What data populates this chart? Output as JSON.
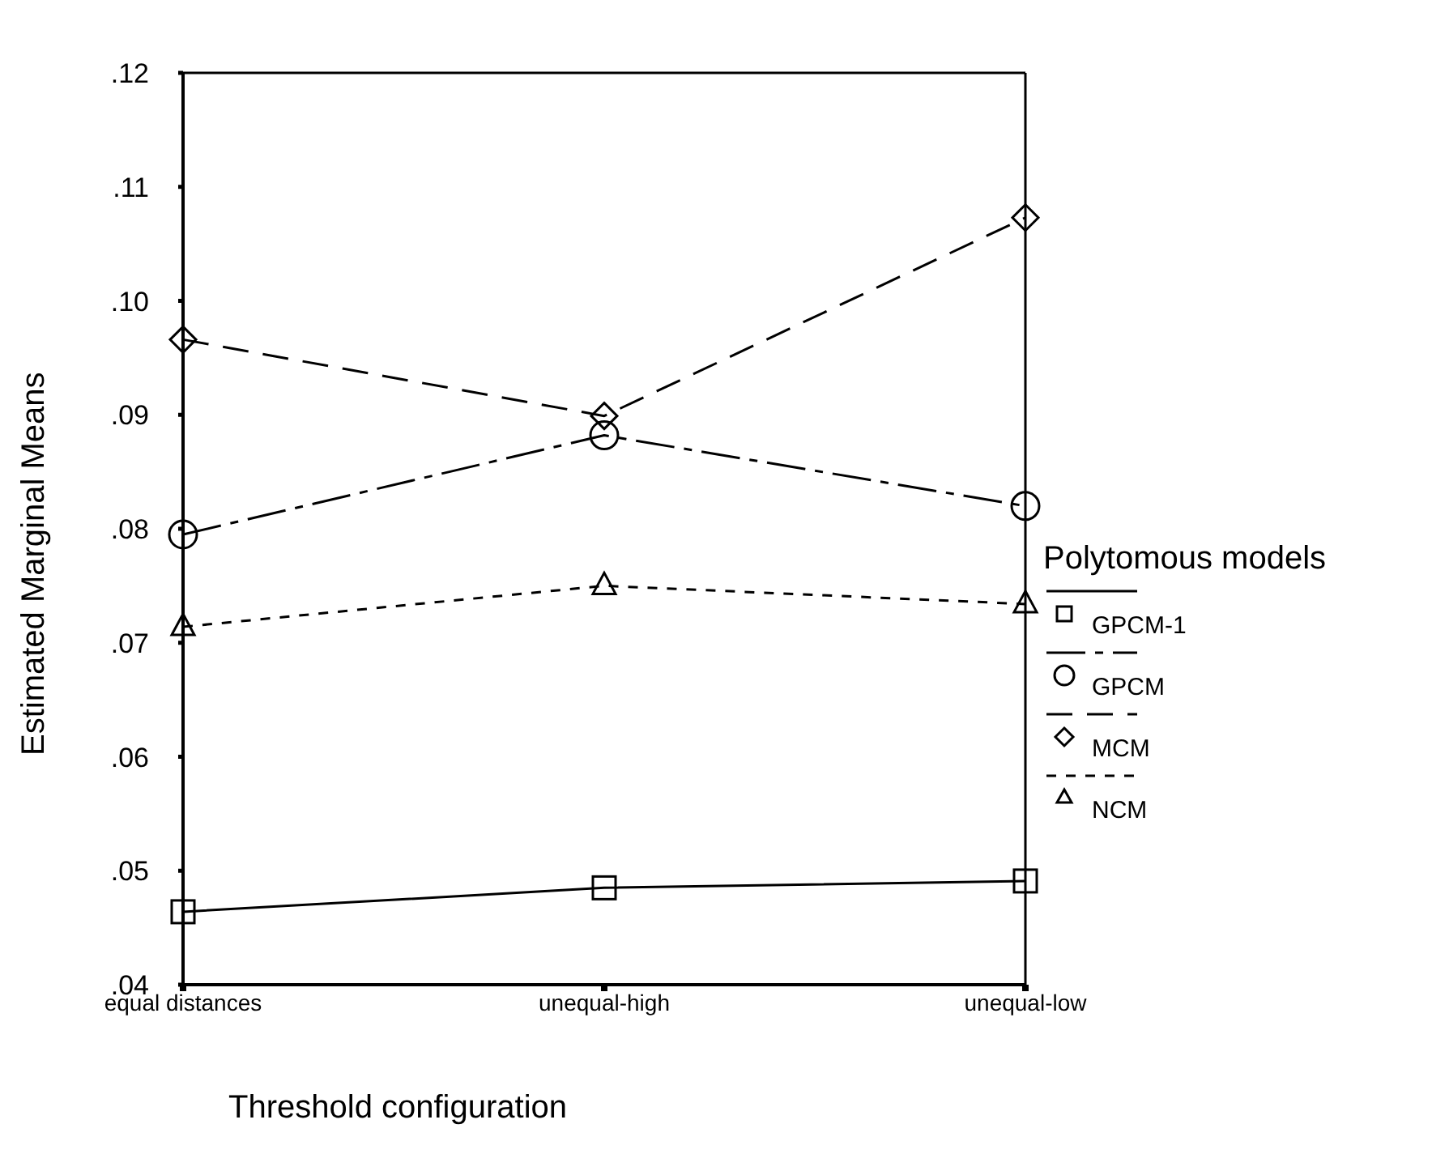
{
  "chart_data": {
    "type": "line",
    "xlabel": "Threshold configuration",
    "ylabel": "Estimated Marginal Means",
    "legend_title": "Polytomous models",
    "legend": "right",
    "categories": [
      "equal distances",
      "unequal-high",
      "unequal-low"
    ],
    "ylim": [
      0.04,
      0.12
    ],
    "yticks": [
      {
        "value": 0.04,
        "label": ".04"
      },
      {
        "value": 0.05,
        "label": ".05"
      },
      {
        "value": 0.06,
        "label": ".06"
      },
      {
        "value": 0.07,
        "label": ".07"
      },
      {
        "value": 0.08,
        "label": ".08"
      },
      {
        "value": 0.09,
        "label": ".09"
      },
      {
        "value": 0.1,
        "label": ".10"
      },
      {
        "value": 0.11,
        "label": ".11"
      },
      {
        "value": 0.12,
        "label": ".12"
      }
    ],
    "series": [
      {
        "name": "GPCM-1",
        "color": "#000000",
        "values": [
          0.0464,
          0.0485,
          0.0491
        ],
        "marker": "square",
        "line_style": "solid"
      },
      {
        "name": "GPCM",
        "color": "#000000",
        "values": [
          0.0795,
          0.0882,
          0.082
        ],
        "marker": "circle",
        "line_style": "dashdot"
      },
      {
        "name": "MCM",
        "color": "#000000",
        "values": [
          0.0966,
          0.0899,
          0.1073
        ],
        "marker": "diamond",
        "line_style": "dashed"
      },
      {
        "name": "NCM",
        "color": "#000000",
        "values": [
          0.0714,
          0.075,
          0.0734
        ],
        "marker": "triangle",
        "line_style": "dotted"
      }
    ]
  }
}
